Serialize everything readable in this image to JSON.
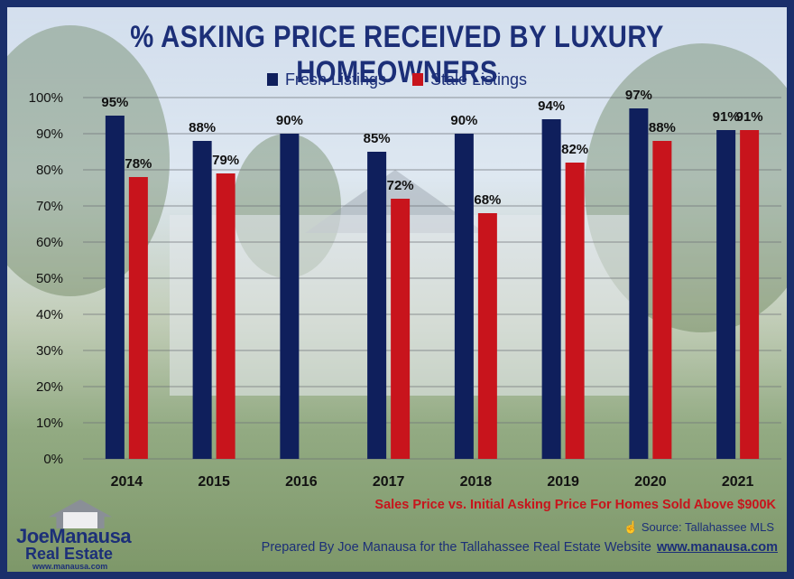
{
  "colors": {
    "fresh": "#0f1f5c",
    "stale": "#c8141c",
    "border": "#1a2f6b",
    "title": "#1c2f78"
  },
  "title": "% ASKING PRICE RECEIVED BY LUXURY HOMEOWNERS",
  "subtitle": "Sales Price vs. Initial Asking Price For Homes Sold Above $900K",
  "source": "Source: Tallahassee MLS",
  "source_icon": "hand-pointer-icon",
  "credit": "Prepared By Joe Manausa for the Tallahassee Real Estate Website",
  "credit_url": "www.manausa.com",
  "logo": {
    "name": "JoeManausa",
    "sub": "Real Estate",
    "url": "www.manausa.com"
  },
  "chart_data": {
    "type": "bar",
    "title": "% ASKING PRICE RECEIVED BY LUXURY HOMEOWNERS",
    "categories": [
      "2014",
      "2015",
      "2016",
      "2017",
      "2018",
      "2019",
      "2020",
      "2021"
    ],
    "series": [
      {
        "name": "Fresh Listings",
        "values": [
          95,
          88,
          90,
          85,
          90,
          94,
          97,
          91
        ]
      },
      {
        "name": "Stale Listings",
        "values": [
          78,
          79,
          null,
          72,
          68,
          82,
          88,
          91
        ]
      }
    ],
    "value_labels": {
      "Fresh Listings": [
        "95%",
        "88%",
        "90%",
        "85%",
        "90%",
        "94%",
        "97%",
        "91%"
      ],
      "Stale Listings": [
        "78%",
        "79%",
        "",
        "72%",
        "68%",
        "82%",
        "88%",
        "91%"
      ]
    },
    "yticks": [
      "0%",
      "10%",
      "20%",
      "30%",
      "40%",
      "50%",
      "60%",
      "70%",
      "80%",
      "90%",
      "100%"
    ],
    "ylim": [
      0,
      100
    ],
    "xlabel": "",
    "ylabel": "",
    "grid": true,
    "legend": "top-center"
  }
}
